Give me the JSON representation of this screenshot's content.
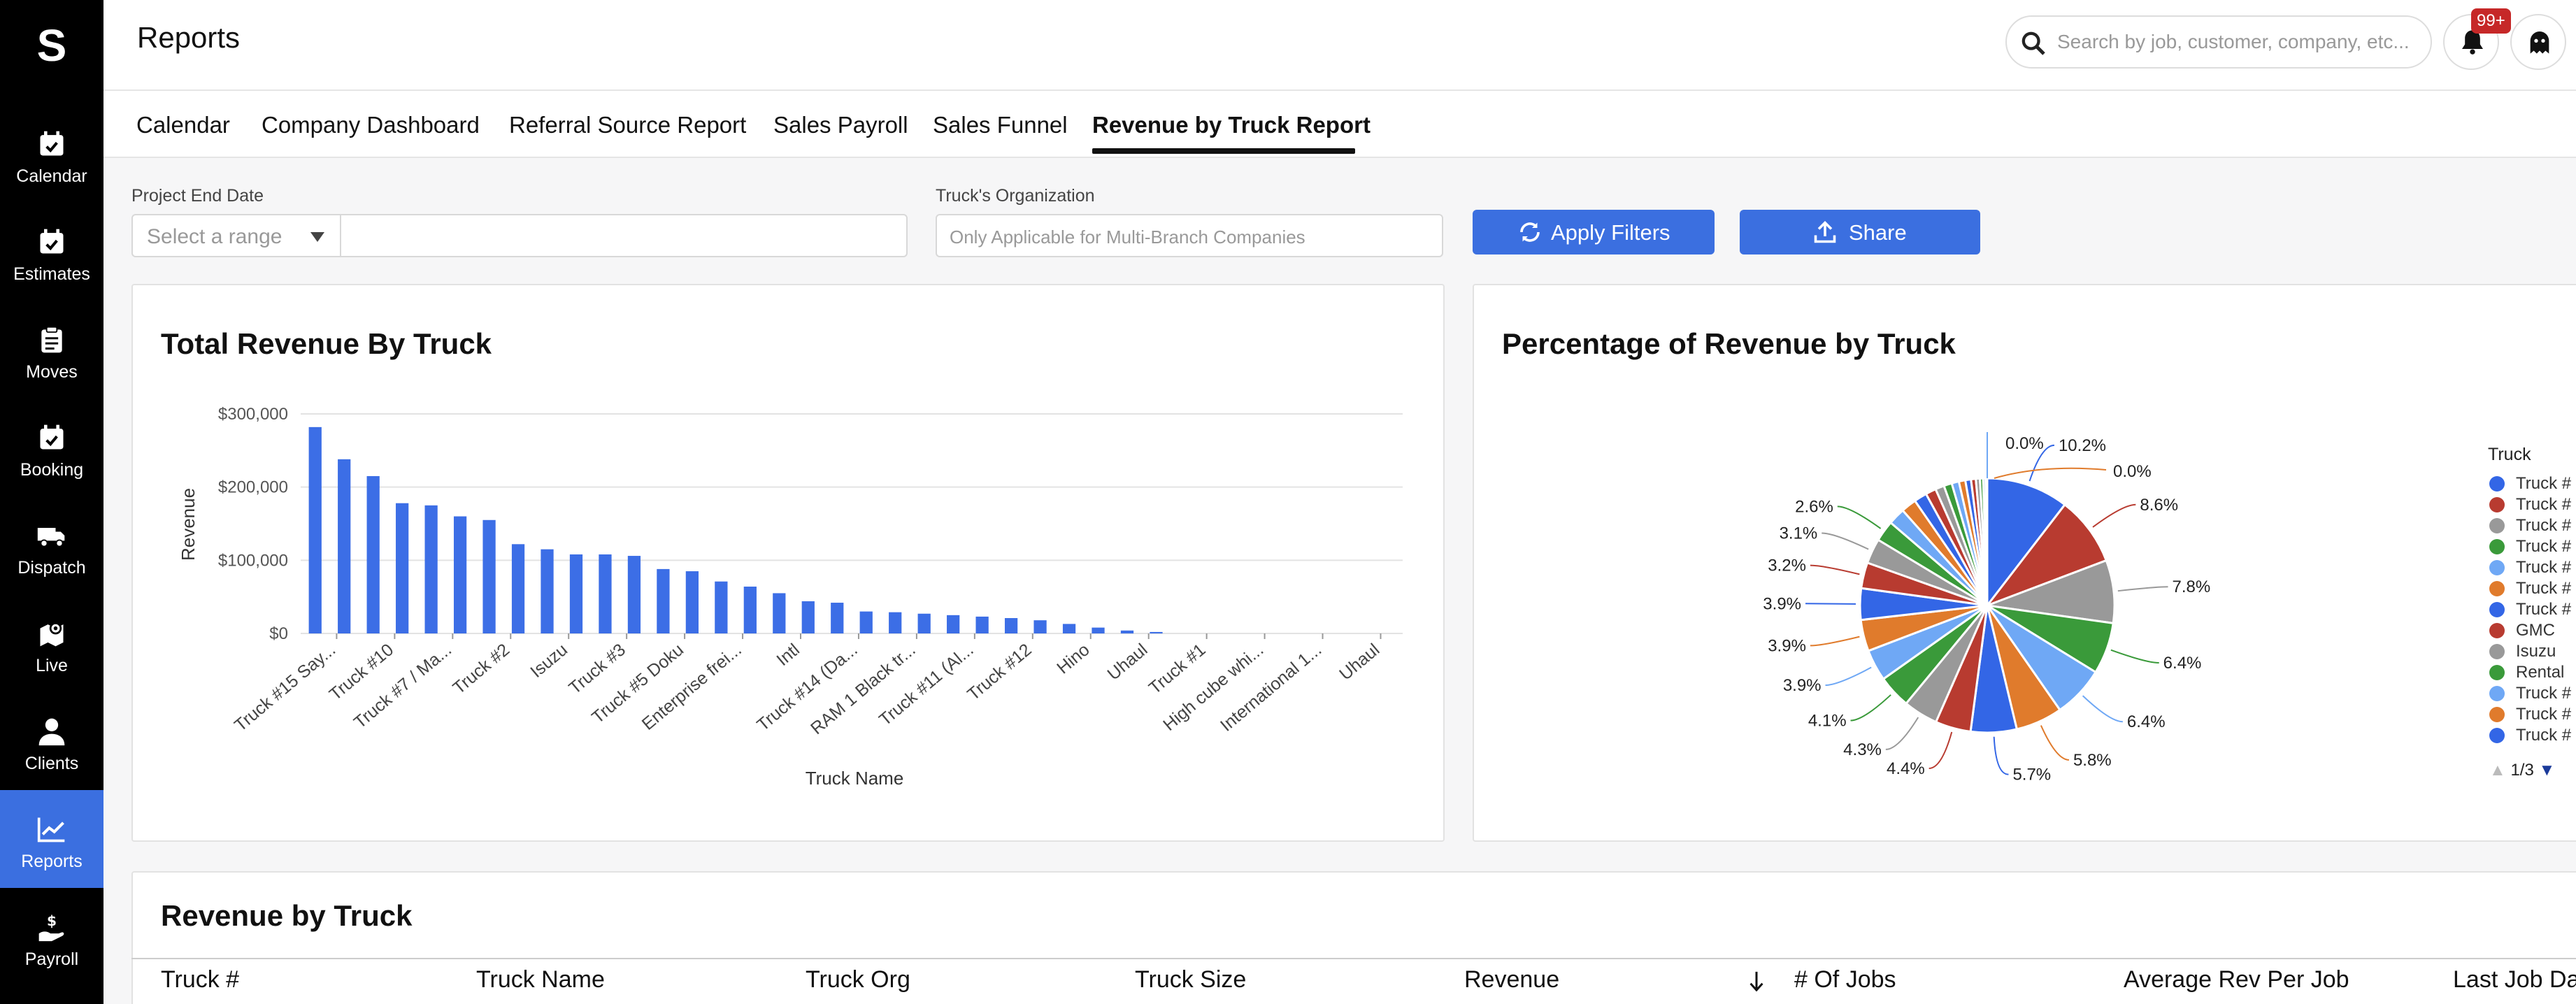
{
  "app": {
    "logo_letter": "S",
    "page_title": "Reports"
  },
  "sidebar": {
    "items": [
      {
        "label": "Calendar",
        "icon": "calendar-icon"
      },
      {
        "label": "Estimates",
        "icon": "estimates-icon"
      },
      {
        "label": "Moves",
        "icon": "clipboard-icon"
      },
      {
        "label": "Booking",
        "icon": "booking-icon"
      },
      {
        "label": "Dispatch",
        "icon": "truck-icon"
      },
      {
        "label": "Live",
        "icon": "map-pin-icon"
      },
      {
        "label": "Clients",
        "icon": "person-icon"
      },
      {
        "label": "Reports",
        "icon": "chart-icon",
        "active": true
      },
      {
        "label": "Payroll",
        "icon": "payroll-icon"
      }
    ]
  },
  "header": {
    "search_placeholder": "Search by job, customer, company, etc...",
    "notification_badge": "99+"
  },
  "tabs": [
    {
      "label": "Calendar"
    },
    {
      "label": "Company Dashboard"
    },
    {
      "label": "Referral Source Report"
    },
    {
      "label": "Sales Payroll"
    },
    {
      "label": "Sales Funnel"
    },
    {
      "label": "Revenue by Truck Report",
      "active": true
    }
  ],
  "filters": {
    "project_end_date_label": "Project End Date",
    "range_placeholder": "Select a range",
    "org_label": "Truck's Organization",
    "org_placeholder": "Only Applicable for Multi-Branch Companies",
    "apply_label": "Apply Filters",
    "share_label": "Share"
  },
  "bar_card": {
    "title": "Total Revenue By Truck"
  },
  "pie_card": {
    "title": "Percentage of Revenue by Truck"
  },
  "legend": {
    "title": "Truck",
    "items": [
      "Truck #",
      "Truck #",
      "Truck #",
      "Truck #",
      "Truck #",
      "Truck #",
      "Truck #",
      "GMC",
      "Isuzu",
      "Rental",
      "Truck #",
      "Truck #",
      "Truck #"
    ],
    "pager": "1/3"
  },
  "chart_data": [
    {
      "type": "bar",
      "title": "Total Revenue By Truck",
      "xlabel": "Truck Name",
      "ylabel": "Revenue",
      "ylim": [
        0,
        300000
      ],
      "yticks": [
        "$0",
        "$100,000",
        "$200,000",
        "$300,000"
      ],
      "tick_labels": [
        "Truck #15 Say...",
        "Truck #10",
        "Truck #7 / Ma...",
        "Truck #2",
        "Isuzu",
        "Truck #3",
        "Truck #5 Doku",
        "Enterprise frei...",
        "Intl",
        "Truck #14 (Da...",
        "RAM 1 Black tr...",
        "Truck #11 (Al...",
        "Truck #12",
        "Hino",
        "Uhaul",
        "Truck #1",
        "High cube whi...",
        "International 1...",
        "Uhaul"
      ],
      "values": [
        282000,
        238000,
        215000,
        178000,
        175000,
        160000,
        155000,
        122000,
        115000,
        108000,
        108000,
        106000,
        88000,
        85000,
        71000,
        64000,
        55000,
        44000,
        42000,
        30000,
        29000,
        27000,
        25000,
        23000,
        21000,
        18000,
        13000,
        8000,
        4000,
        2000,
        0,
        0,
        0,
        0,
        0,
        0,
        0,
        0
      ]
    },
    {
      "type": "pie",
      "title": "Percentage of Revenue by Truck",
      "legend_title": "Truck",
      "labels_shown": [
        "0.0%",
        "0.0%",
        "10.2%",
        "8.6%",
        "7.8%",
        "6.4%",
        "6.4%",
        "5.8%",
        "5.7%",
        "4.4%",
        "4.3%",
        "4.1%",
        "3.9%",
        "3.9%",
        "3.9%",
        "3.2%",
        "3.1%",
        "2.6%"
      ],
      "slices": [
        {
          "value": 10.2,
          "color": "#3366e6"
        },
        {
          "value": 8.6,
          "color": "#b83b30"
        },
        {
          "value": 7.8,
          "color": "#999999"
        },
        {
          "value": 6.4,
          "color": "#3a9a3a"
        },
        {
          "value": 6.4,
          "color": "#6fa8f5"
        },
        {
          "value": 5.8,
          "color": "#e07b2c"
        },
        {
          "value": 5.7,
          "color": "#3366e6"
        },
        {
          "value": 4.4,
          "color": "#b83b30"
        },
        {
          "value": 4.3,
          "color": "#999999"
        },
        {
          "value": 4.1,
          "color": "#3a9a3a"
        },
        {
          "value": 3.9,
          "color": "#6fa8f5"
        },
        {
          "value": 3.9,
          "color": "#e07b2c"
        },
        {
          "value": 3.9,
          "color": "#3366e6"
        },
        {
          "value": 3.2,
          "color": "#b83b30"
        },
        {
          "value": 3.1,
          "color": "#999999"
        },
        {
          "value": 2.6,
          "color": "#3a9a3a"
        },
        {
          "value": 2.1,
          "color": "#6fa8f5"
        },
        {
          "value": 1.9,
          "color": "#e07b2c"
        },
        {
          "value": 1.6,
          "color": "#3366e6"
        },
        {
          "value": 1.3,
          "color": "#b83b30"
        },
        {
          "value": 1.1,
          "color": "#999999"
        },
        {
          "value": 1.0,
          "color": "#3a9a3a"
        },
        {
          "value": 0.9,
          "color": "#6fa8f5"
        },
        {
          "value": 0.8,
          "color": "#e07b2c"
        },
        {
          "value": 0.7,
          "color": "#3366e6"
        },
        {
          "value": 0.6,
          "color": "#b83b30"
        },
        {
          "value": 0.5,
          "color": "#999999"
        },
        {
          "value": 0.4,
          "color": "#3a9a3a"
        },
        {
          "value": 0.3,
          "color": "#6fa8f5"
        },
        {
          "value": 0.2,
          "color": "#e07b2c"
        }
      ]
    }
  ],
  "table": {
    "title": "Revenue by Truck",
    "columns": [
      "Truck #",
      "Truck Name",
      "Truck Org",
      "Truck Size",
      "Revenue",
      "# Of Jobs",
      "Average Rev Per Job",
      "Last Job Da"
    ]
  }
}
